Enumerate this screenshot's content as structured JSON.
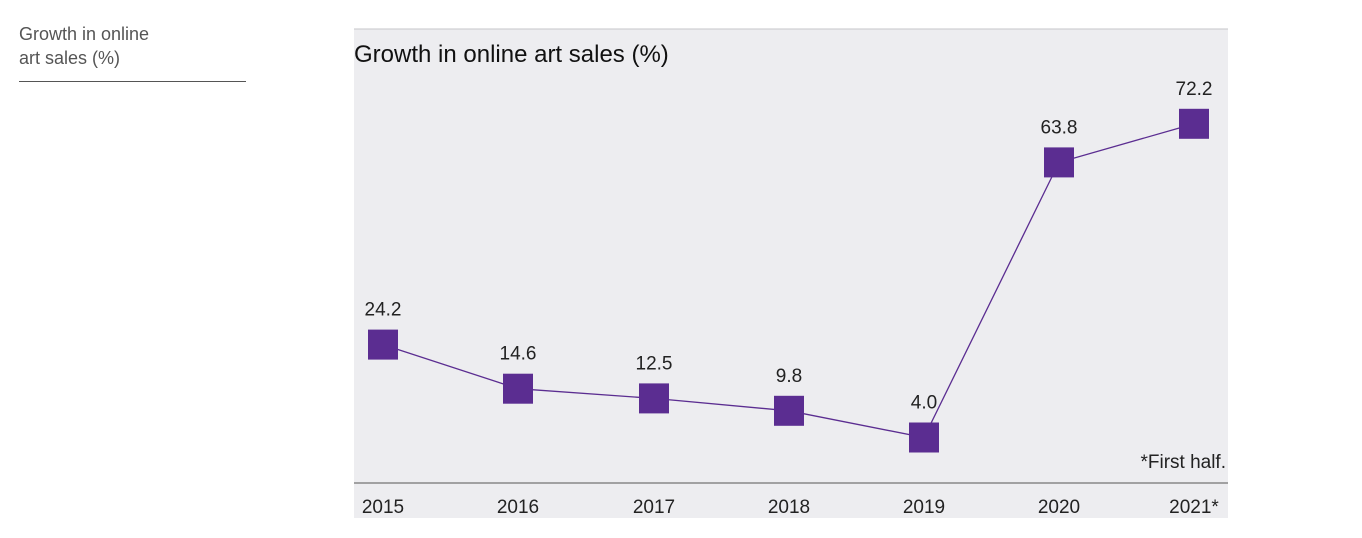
{
  "sidebar": {
    "caption": "Growth in online\nart sales (%)"
  },
  "chart_data": {
    "type": "line",
    "title": "Growth in online art sales (%)",
    "categories": [
      "2015",
      "2016",
      "2017",
      "2018",
      "2019",
      "2020",
      "2021*"
    ],
    "values": [
      24.2,
      14.6,
      12.5,
      9.8,
      4.0,
      63.8,
      72.2
    ],
    "value_labels": [
      "24.2",
      "14.6",
      "12.5",
      "9.8",
      "4.0",
      "63.8",
      "72.2"
    ],
    "footnote": "*First half.",
    "xlabel": "",
    "ylabel": "",
    "grid": false,
    "marker": "square",
    "colors": {
      "series": "#5b2d91",
      "background": "#ededf0",
      "axis": "#555555"
    }
  }
}
